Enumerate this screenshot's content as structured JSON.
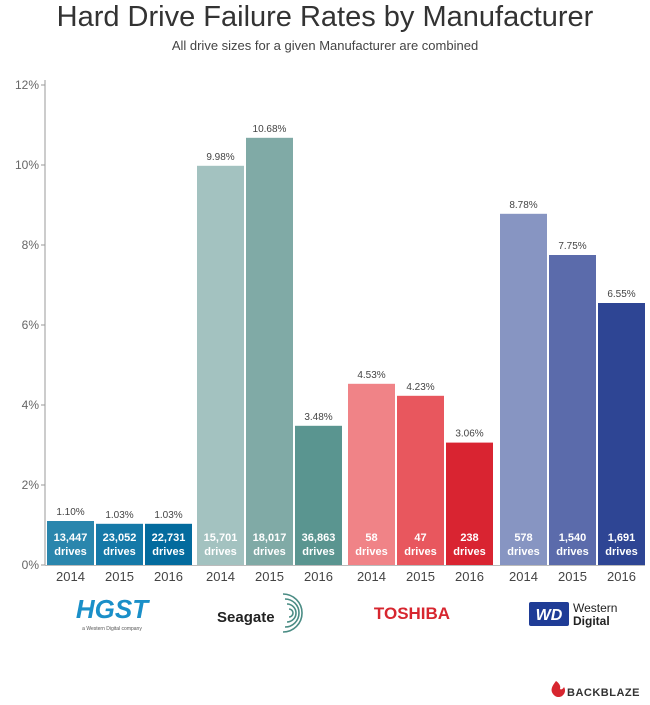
{
  "title": "Hard Drive Failure Rates by Manufacturer",
  "subtitle": "All drive sizes for a given Manufacturer are combined",
  "chart_data": {
    "type": "bar",
    "title": "Hard Drive Failure Rates by Manufacturer",
    "subtitle": "All drive sizes for a given Manufacturer are combined",
    "ylim": [
      0,
      12
    ],
    "yticks": [
      "0%",
      "2%",
      "4%",
      "6%",
      "8%",
      "10%",
      "12%"
    ],
    "ytick_values": [
      0,
      2,
      4,
      6,
      8,
      10,
      12
    ],
    "grid": false,
    "count_unit": "drives",
    "groups": [
      {
        "manufacturer": "HGST",
        "bars": [
          {
            "year": "2014",
            "value": 1.1,
            "label": "1.10%",
            "count": "13,447",
            "color": "#2a86ad"
          },
          {
            "year": "2015",
            "value": 1.03,
            "label": "1.03%",
            "count": "23,052",
            "color": "#1579a8"
          },
          {
            "year": "2016",
            "value": 1.03,
            "label": "1.03%",
            "count": "22,731",
            "color": "#036b9e"
          }
        ]
      },
      {
        "manufacturer": "Seagate",
        "bars": [
          {
            "year": "2014",
            "value": 9.98,
            "label": "9.98%",
            "count": "15,701",
            "color": "#a3c2c0"
          },
          {
            "year": "2015",
            "value": 10.68,
            "label": "10.68%",
            "count": "18,017",
            "color": "#80aaa6"
          },
          {
            "year": "2016",
            "value": 3.48,
            "label": "3.48%",
            "count": "36,863",
            "color": "#5a9590"
          }
        ]
      },
      {
        "manufacturer": "Toshiba",
        "bars": [
          {
            "year": "2014",
            "value": 4.53,
            "label": "4.53%",
            "count": "58",
            "color": "#f08387"
          },
          {
            "year": "2015",
            "value": 4.23,
            "label": "4.23%",
            "count": "47",
            "color": "#e8575e"
          },
          {
            "year": "2016",
            "value": 3.06,
            "label": "3.06%",
            "count": "238",
            "color": "#d92431"
          }
        ]
      },
      {
        "manufacturer": "Western Digital",
        "bars": [
          {
            "year": "2014",
            "value": 8.78,
            "label": "8.78%",
            "count": "578",
            "color": "#8795c2"
          },
          {
            "year": "2015",
            "value": 7.75,
            "label": "7.75%",
            "count": "1,540",
            "color": "#5b6bab"
          },
          {
            "year": "2016",
            "value": 6.55,
            "label": "6.55%",
            "count": "1,691",
            "color": "#2e4594"
          }
        ]
      }
    ]
  },
  "logos": {
    "hgst": {
      "name": "HGST",
      "tagline": "a Western Digital company",
      "color": "#1a8fc8"
    },
    "seagate": {
      "name": "Seagate",
      "color": "#4a8c84"
    },
    "toshiba": {
      "name": "TOSHIBA",
      "color": "#d7262f"
    },
    "wd": {
      "mark": "WD",
      "line1": "Western",
      "line2": "Digital",
      "color": "#1f3c96"
    }
  },
  "brand": {
    "name": "BACKBLAZE",
    "color": "#d7262f"
  }
}
